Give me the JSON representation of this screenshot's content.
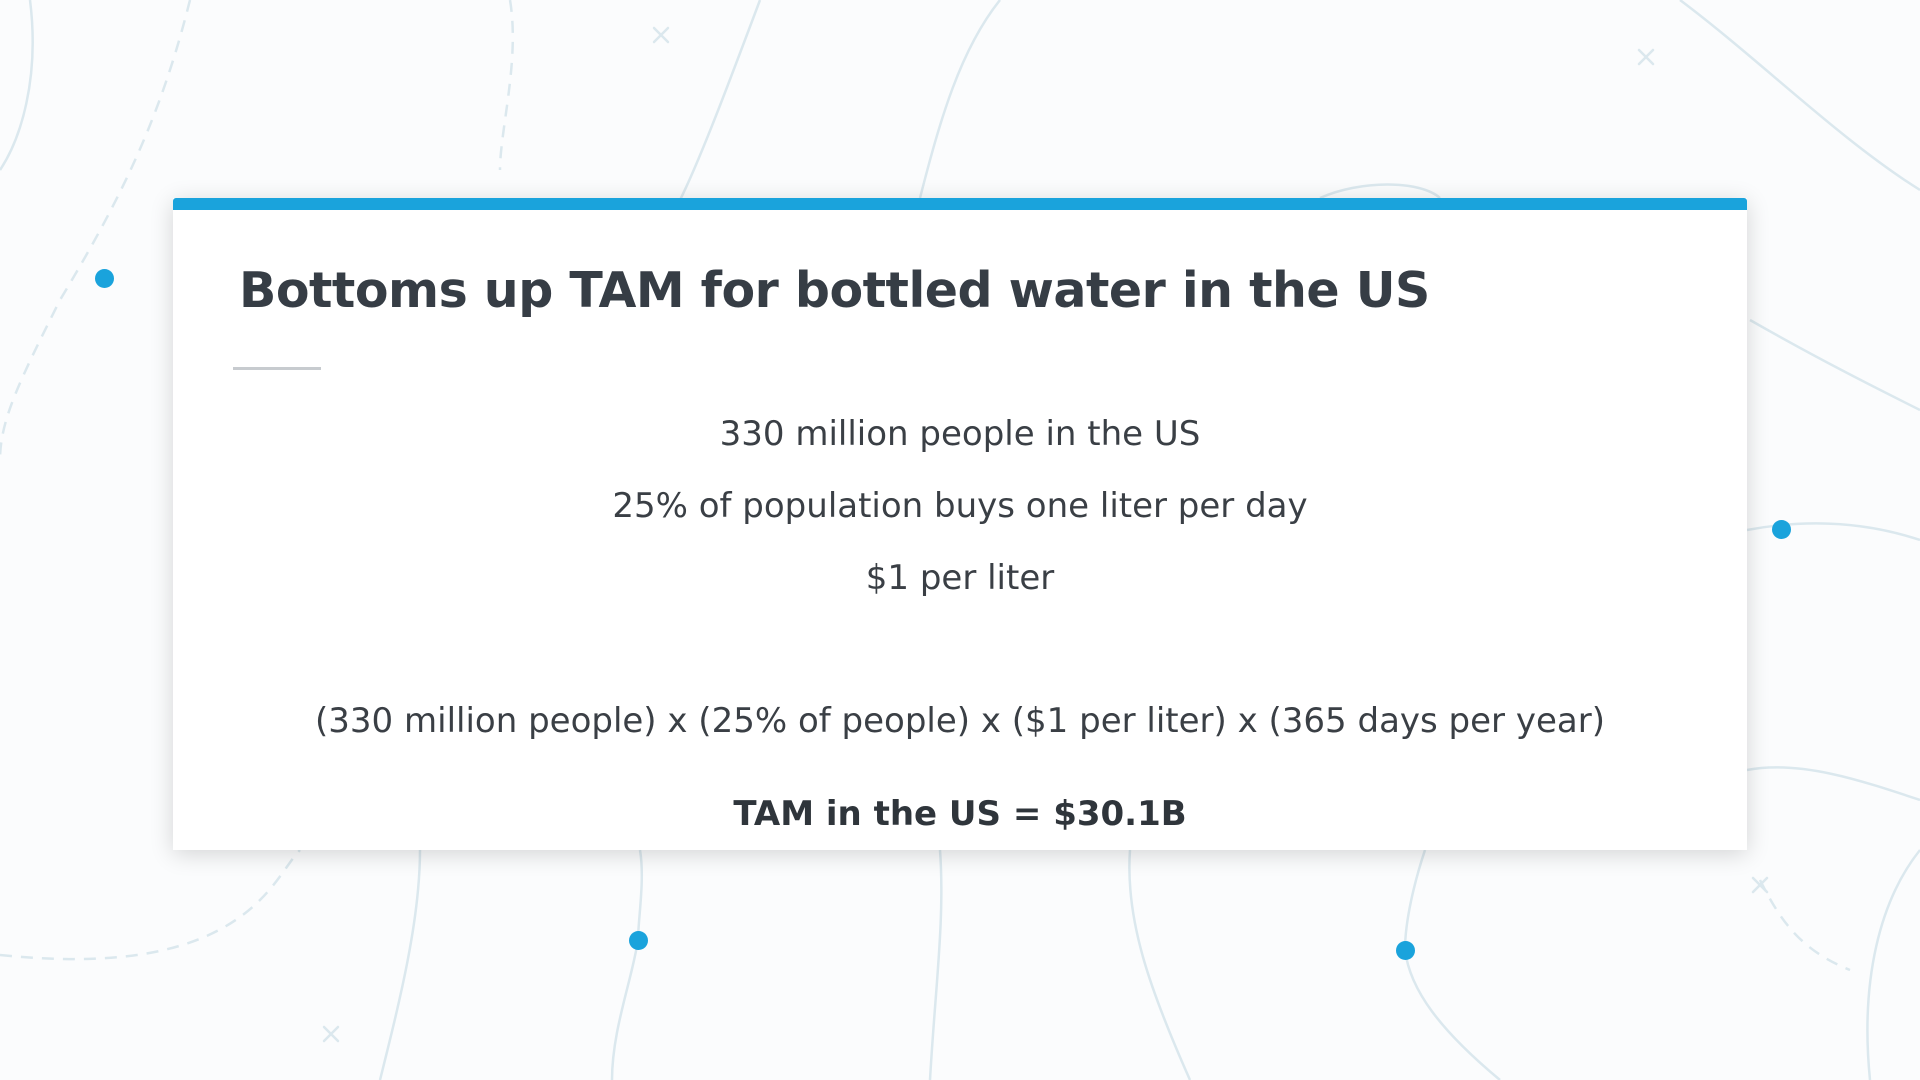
{
  "slide": {
    "title": "Bottoms up TAM for bottled water in the US",
    "lines": [
      "330 million people in the US",
      "25% of population buys one liter per day",
      "$1 per liter",
      "(330 million people) x (25% of people) x ($1 per liter) x (365 days per year)"
    ],
    "result": "TAM in the US = $30.1B"
  },
  "colors": {
    "accent": "#1aa3dc",
    "title_text": "#363d45",
    "body_text": "#3a3f45",
    "background_lines": "#dbe9ef"
  }
}
